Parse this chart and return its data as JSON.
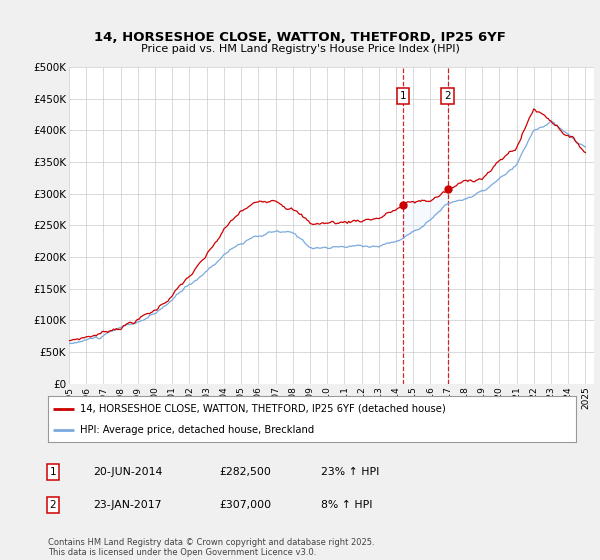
{
  "title": "14, HORSESHOE CLOSE, WATTON, THETFORD, IP25 6YF",
  "subtitle": "Price paid vs. HM Land Registry's House Price Index (HPI)",
  "ylim": [
    0,
    500000
  ],
  "yticks": [
    0,
    50000,
    100000,
    150000,
    200000,
    250000,
    300000,
    350000,
    400000,
    450000,
    500000
  ],
  "ytick_labels": [
    "£0",
    "£50K",
    "£100K",
    "£150K",
    "£200K",
    "£250K",
    "£300K",
    "£350K",
    "£400K",
    "£450K",
    "£500K"
  ],
  "line1_color": "#cc0000",
  "line2_color": "#7aaadd",
  "shade_color": "#ddeeff",
  "vline_color": "#cc0000",
  "sale1_price": 282500,
  "sale2_price": 307000,
  "sale1_label": "20-JUN-2014",
  "sale2_label": "23-JAN-2017",
  "sale1_pct": "23% ↑ HPI",
  "sale2_pct": "8% ↑ HPI",
  "legend1": "14, HORSESHOE CLOSE, WATTON, THETFORD, IP25 6YF (detached house)",
  "legend2": "HPI: Average price, detached house, Breckland",
  "footnote": "Contains HM Land Registry data © Crown copyright and database right 2025.\nThis data is licensed under the Open Government Licence v3.0.",
  "background_color": "#f0f0f0",
  "plot_bg_color": "#ffffff",
  "grid_color": "#cccccc",
  "hpi_anchors_x": [
    0,
    24,
    60,
    96,
    108,
    120,
    144,
    156,
    168,
    192,
    216,
    228,
    252,
    264,
    288,
    312,
    324,
    336,
    348,
    360
  ],
  "hpi_anchors_y": [
    63000,
    75000,
    105000,
    175000,
    205000,
    225000,
    240000,
    235000,
    215000,
    215000,
    220000,
    228000,
    255000,
    270000,
    290000,
    330000,
    385000,
    400000,
    375000,
    355000
  ],
  "price_anchors_x": [
    0,
    24,
    60,
    96,
    108,
    120,
    144,
    156,
    168,
    192,
    216,
    228,
    252,
    264,
    288,
    312,
    324,
    336,
    348,
    360
  ],
  "price_anchors_y": [
    68000,
    82000,
    118000,
    195000,
    230000,
    255000,
    275000,
    265000,
    240000,
    240000,
    248000,
    258000,
    283000,
    308000,
    330000,
    375000,
    435000,
    420000,
    400000,
    375000
  ]
}
